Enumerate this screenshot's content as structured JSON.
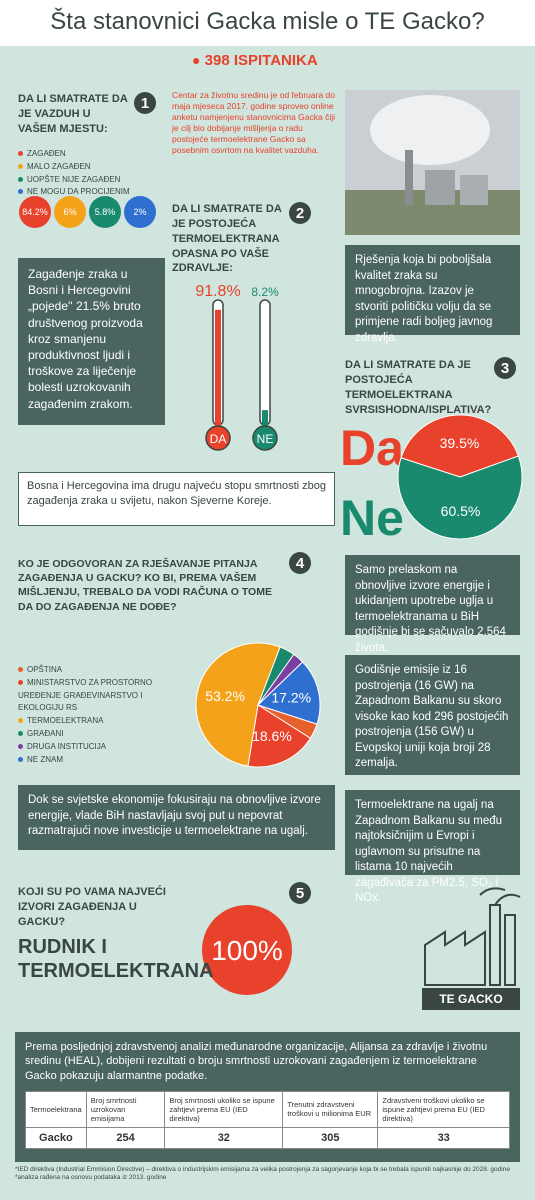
{
  "header": {
    "title": "Šta stanovnici Gacka misle o TE Gacko?",
    "respondents": "398 ISPITANIKA"
  },
  "q1": {
    "number": "1",
    "question": "DA LI SMATRATE DA JE VAZDUH U VAŠEM MJESTU:",
    "options": [
      {
        "label": "ZAGAĐEN",
        "color": "#e8412c",
        "value_label": "84.2%"
      },
      {
        "label": "MALO ZAGAĐEN",
        "color": "#f5a21b",
        "value_label": "6%"
      },
      {
        "label": "UOPŠTE NIJE ZAGAĐEN",
        "color": "#1a8a6e",
        "value_label": "5.8%"
      },
      {
        "label": "NE MOGU DA PROCIJENIM",
        "color": "#2f6fd0",
        "value_label": "2%"
      }
    ]
  },
  "intro": "Centar za životnu sredinu je od februara do maja mjeseca 2017. godine sproveo online anketu namjenjenu stanovnicima Gacka čiji je cilj bio dobijanje mišljenja o radu postojeće termoelektrane Gacko sa posebnim osvrtom na kvalitet vazduha.",
  "q2": {
    "number": "2",
    "question": "DA LI SMATRATE DA JE POSTOJEĆA TERMOELEKTRANA OPASNA PO VAŠE ZDRAVLJE:",
    "items": [
      {
        "label": "DA",
        "value": 91.8,
        "value_label": "91.8%",
        "color": "#e8412c"
      },
      {
        "label": "NE",
        "value": 8.2,
        "value_label": "8.2%",
        "color": "#1a8a6e"
      }
    ]
  },
  "fact_gdp": "Zagađenje zraka u Bosni i Hercegovini „pojede'' 21.5% bruto društvenog proizvoda kroz smanjenu produktivnost ljudi i troškove za liječenje bolesti uzrokovanih zagađenim zrakom.",
  "fact_solutions": "Rješenja koja bi poboljšala kvalitet zraka su mnogobrojna. Izazov je stvoriti političku volju da se primjene radi boljeg javnog zdravlja.",
  "q3": {
    "number": "3",
    "question": "DA LI SMATRATE DA JE POSTOJEĆA TERMOELEKTRANA SVRSISHODNA/ISPLATIVA?",
    "items": [
      {
        "label": "Da",
        "value": 39.5,
        "value_label": "39.5%",
        "color": "#e8412c"
      },
      {
        "label": "Ne",
        "value": 60.5,
        "value_label": "60.5%",
        "color": "#1a8a6e"
      }
    ]
  },
  "fact_mortality": "Bosna i Hercegovina ima drugu najveću stopu smrtnosti zbog zagađenja zraka u svijetu, nakon Sjeverne Koreje.",
  "q4": {
    "number": "4",
    "question": "KO JE ODGOVORAN ZA RJEŠAVANJE PITANJA ZAGAĐENJA U GACKU? KO BI, PREMA VAŠEM MIŠLJENJU, TREBALO DA VODI RAČUNA O TOME DA DO ZAGAĐENJA NE DOĐE?",
    "items": [
      {
        "label": "OPŠTINA",
        "value": 4,
        "color": "#e8602c"
      },
      {
        "label": "MINISTARSTVO ZA PROSTORNO UREĐENJE GRAĐEVINARSTVO I EKOLOGIJU RS",
        "value": 18.6,
        "value_label": "18.6%",
        "color": "#e8412c"
      },
      {
        "label": "TERMOELEKTRANA",
        "value": 53.2,
        "value_label": "53.2%",
        "color": "#f5a21b"
      },
      {
        "label": "GRAĐANI",
        "value": 4,
        "color": "#1a8a6e"
      },
      {
        "label": "DRUGA INSTITUCIJA",
        "value": 3,
        "color": "#7a3fa0"
      },
      {
        "label": "NE ZNAM",
        "value": 17.2,
        "value_label": "17.2%",
        "color": "#2f6fd0"
      }
    ]
  },
  "fact_renewables": "Samo prelaskom na obnovljive izvore energije i ukidanjem upotrebe uglja u termoelektranama u BiH godišnje bi se sačuvalo 2.564 života.",
  "fact_emissions": "Godišnje emisije iz 16 postrojenja (16 GW) na Zapadnom Balkanu su skoro visoke kao kod 296 postojećih postrojenja (156 GW) u Evopskoj uniji koja broji 28 zemalja.",
  "fact_economies": "Dok se svjetske ekonomije fokusiraju na obnovljive izvore energije, vlade BiH nastavljaju svoj put u nepovrat razmatrajući nove investicije u termoelektrane na ugalj.",
  "fact_coal": "Termoelektrane na ugalj na Zapadnom Balkanu su među najtoksičnijim u Evropi i uglavnom su prisutne na listama 10 najvećih zagađivača za PM2.5, SO₂ i NOx.",
  "q5": {
    "number": "5",
    "question": "KOJI SU PO VAMA NAJVEĆI IZVORI ZAGAĐENJA U GACKU?",
    "answer": "RUDNIK I TERMOELEKTRANA",
    "value_label": "100%"
  },
  "plant_label": "TE GACKO",
  "report": {
    "intro": "Prema posljednjoj zdravstvenoj analizi međunarodne organizacije, Alijansa za zdravlje i životnu sredinu (HEAL), dobijeni rezultati o broju smrtnosti uzrokovani zagađenjem iz termoelektrane Gacko pokazuju alarmantne podatke.",
    "table": {
      "headers": [
        "Termoelektrana",
        "Broj smrtnosti uzrokovan emisijama",
        "Broj smrtnosti ukoliko se ispune zahtjevi prema EU (IED direktiva)",
        "Trenutni zdravstveni troškovi u milionima EUR",
        "Zdravstveni troškovi ukoliko se ispune zahtjevi prema EU (IED direktiva)"
      ],
      "rows": [
        [
          "Gacko",
          254,
          32,
          305,
          33
        ]
      ]
    }
  },
  "footnotes": [
    "*IED direktiva (Industrial Emmision Directive) – direktiva o industrijskim emisijama za velika postrojenja za sagorjevanje koja bi se trebala ispuniti najkasnije do 2028. godine",
    "*analiza rađena na osnovu podataka iz 2013. godine"
  ]
}
